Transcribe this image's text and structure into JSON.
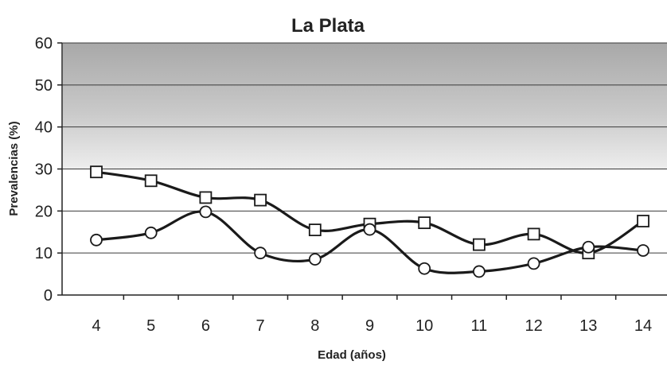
{
  "chart_data": {
    "type": "line",
    "title": "La Plata",
    "xlabel": "Edad (años)",
    "ylabel": "Prevalencias (%)",
    "categories": [
      "4",
      "5",
      "6",
      "7",
      "8",
      "9",
      "10",
      "11",
      "12",
      "13",
      "14"
    ],
    "ylim": [
      0,
      60
    ],
    "yticks": [
      0,
      10,
      20,
      30,
      40,
      50,
      60
    ],
    "grid": true,
    "legend": "none",
    "series": [
      {
        "marker": "square",
        "values": [
          29.3,
          27.2,
          23.2,
          22.6,
          15.5,
          16.9,
          17.2,
          12.0,
          14.5,
          10.0,
          17.6
        ]
      },
      {
        "marker": "circle",
        "values": [
          13.1,
          14.8,
          19.8,
          10.0,
          8.5,
          15.6,
          6.3,
          5.6,
          7.5,
          11.4,
          10.6
        ]
      }
    ],
    "shaded_band": [
      30,
      60
    ]
  }
}
